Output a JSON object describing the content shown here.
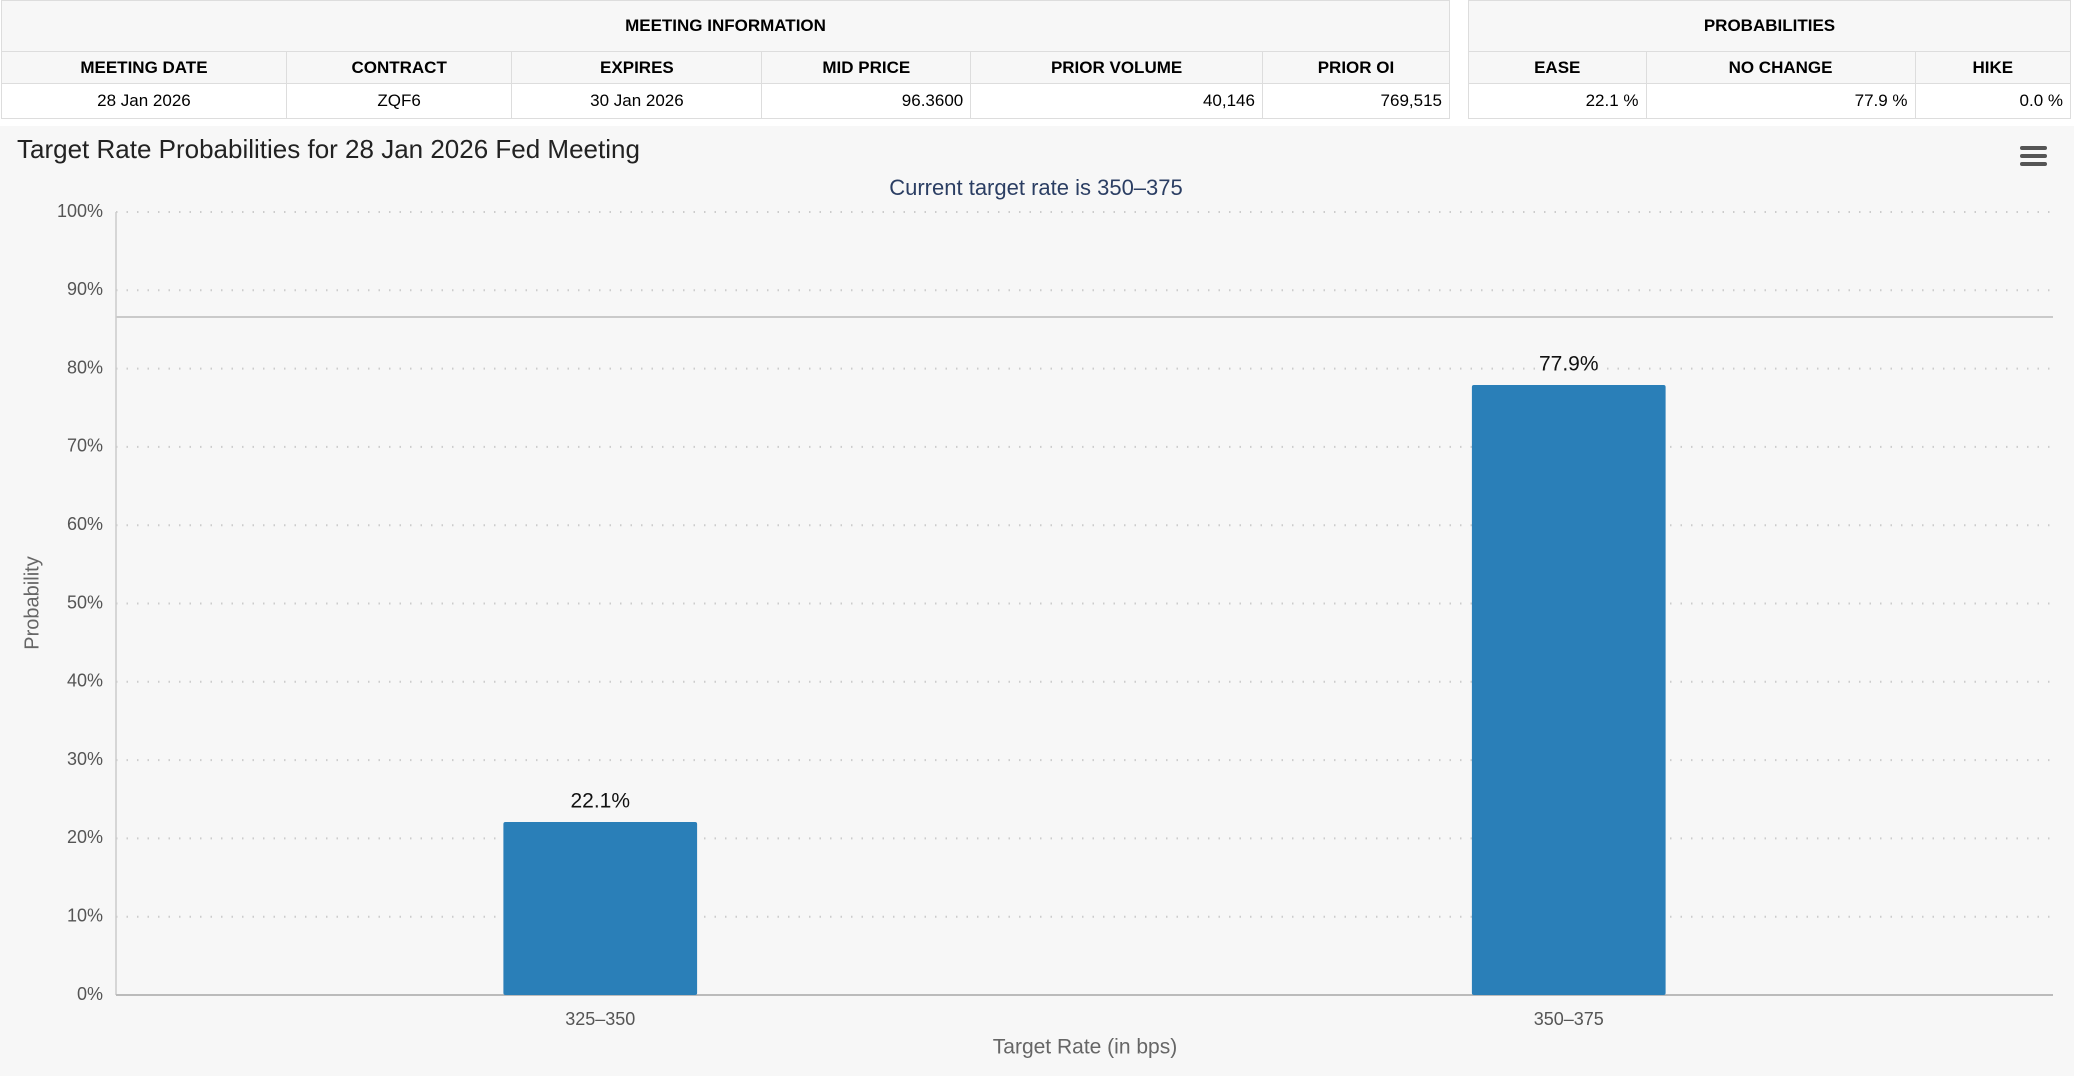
{
  "meeting_info": {
    "title": "MEETING INFORMATION",
    "headers": [
      "MEETING DATE",
      "CONTRACT",
      "EXPIRES",
      "MID PRICE",
      "PRIOR VOLUME",
      "PRIOR OI"
    ],
    "row": [
      "28 Jan 2026",
      "ZQF6",
      "30 Jan 2026",
      "96.3600",
      "40,146",
      "769,515"
    ]
  },
  "probabilities": {
    "title": "PROBABILITIES",
    "headers": [
      "EASE",
      "NO CHANGE",
      "HIKE"
    ],
    "row": [
      "22.1 %",
      "77.9 %",
      "0.0 %"
    ]
  },
  "chart_data": {
    "type": "bar",
    "title": "Target Rate Probabilities for 28 Jan 2026 Fed Meeting",
    "subtitle": "Current target rate is 350–375",
    "x_label": "Target Rate (in bps)",
    "y_label": "Probability",
    "categories": [
      "325–350",
      "350–375"
    ],
    "values": [
      22.1,
      77.9
    ],
    "value_labels": [
      "22.1%",
      "77.9%"
    ],
    "color": "#2a7fb8",
    "ylim": [
      0,
      100
    ],
    "yticks": [
      {
        "value": 0,
        "label": "0%"
      },
      {
        "value": 10,
        "label": "10%"
      },
      {
        "value": 20,
        "label": "20%"
      },
      {
        "value": 30,
        "label": "30%"
      },
      {
        "value": 40,
        "label": "40%"
      },
      {
        "value": 50,
        "label": "50%"
      },
      {
        "value": 60,
        "label": "60%"
      },
      {
        "value": 70,
        "label": "70%"
      },
      {
        "value": 80,
        "label": "80%"
      },
      {
        "value": 90,
        "label": "90%"
      },
      {
        "value": 100,
        "label": "100%"
      }
    ],
    "grid": true
  }
}
